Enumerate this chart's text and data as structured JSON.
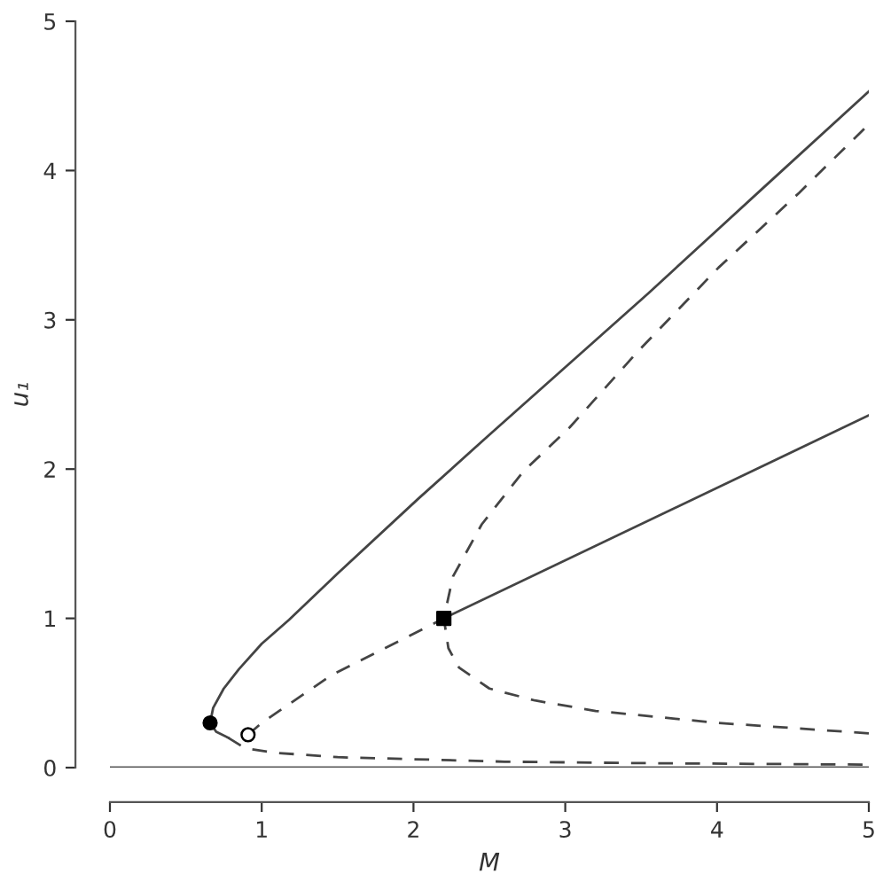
{
  "chart_data": {
    "type": "line",
    "xlabel": "M",
    "ylabel": "u₁",
    "xlim": [
      0,
      5
    ],
    "ylim": [
      0,
      5
    ],
    "xticks": [
      0,
      1,
      2,
      3,
      4,
      5
    ],
    "yticks": [
      0,
      1,
      2,
      3,
      4,
      5
    ],
    "grid": false,
    "series": [
      {
        "line_style": "solid",
        "color": "#555555",
        "x": [
          0,
          5
        ],
        "values": [
          0,
          0
        ]
      },
      {
        "line_style": "solid",
        "color": "#444444",
        "x": [
          0.78,
          0.7,
          0.66,
          0.68,
          0.75,
          0.85,
          1.0,
          1.18,
          1.5,
          2.03,
          2.5,
          3.55,
          4.3,
          5.0
        ],
        "values": [
          0.2,
          0.24,
          0.3,
          0.4,
          0.53,
          0.66,
          0.83,
          0.99,
          1.3,
          1.8,
          2.23,
          3.18,
          3.88,
          4.53
        ]
      },
      {
        "line_style": "dashed",
        "color": "#444444",
        "x": [
          0.78,
          0.89,
          1.08,
          1.5,
          2.6,
          3.5,
          5.0
        ],
        "values": [
          0.2,
          0.13,
          0.1,
          0.07,
          0.04,
          0.03,
          0.02
        ]
      },
      {
        "line_style": "dashed",
        "color": "#444444",
        "x": [
          0.91,
          1.0,
          1.46,
          1.95,
          2.2
        ],
        "values": [
          0.22,
          0.3,
          0.62,
          0.87,
          1.0
        ]
      },
      {
        "line_style": "solid",
        "color": "#444444",
        "x": [
          2.2,
          5.0
        ],
        "values": [
          1.0,
          2.36
        ]
      },
      {
        "line_style": "dashed",
        "color": "#444444",
        "x": [
          5.0,
          4.0,
          3.2,
          2.8,
          2.5,
          2.3,
          2.23,
          2.2,
          2.26,
          2.45,
          2.72,
          3.03,
          3.48,
          4.01,
          4.54,
          5.0
        ],
        "values": [
          0.23,
          0.3,
          0.38,
          0.45,
          0.53,
          0.67,
          0.8,
          1.0,
          1.28,
          1.63,
          1.98,
          2.28,
          2.79,
          3.35,
          3.85,
          4.31
        ]
      },
      {
        "type": "scatter",
        "marker": "circle",
        "color": "#000000",
        "x": [
          0.66
        ],
        "values": [
          0.3
        ]
      },
      {
        "type": "scatter",
        "marker": "circle",
        "color": "#ffffff",
        "x": [
          0.91
        ],
        "values": [
          0.22
        ]
      },
      {
        "type": "scatter",
        "marker": "square",
        "color": "#000000",
        "x": [
          2.2
        ],
        "values": [
          1.0
        ]
      }
    ]
  }
}
